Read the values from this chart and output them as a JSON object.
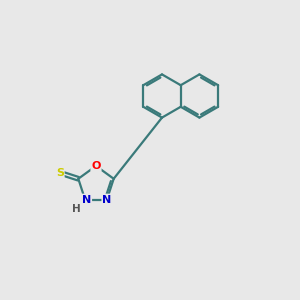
{
  "background_color": "#e8e8e8",
  "bond_color": "#3a7a7a",
  "atom_colors": {
    "O": "#ff0000",
    "N": "#0000cc",
    "S": "#cccc00",
    "H": "#555555"
  },
  "bond_width": 1.6,
  "figsize": [
    3.0,
    3.0
  ],
  "dpi": 100,
  "nap_r": 0.72,
  "nap_lc": [
    5.4,
    6.8
  ],
  "pent_r": 0.62,
  "pent_c": [
    3.2,
    3.85
  ]
}
